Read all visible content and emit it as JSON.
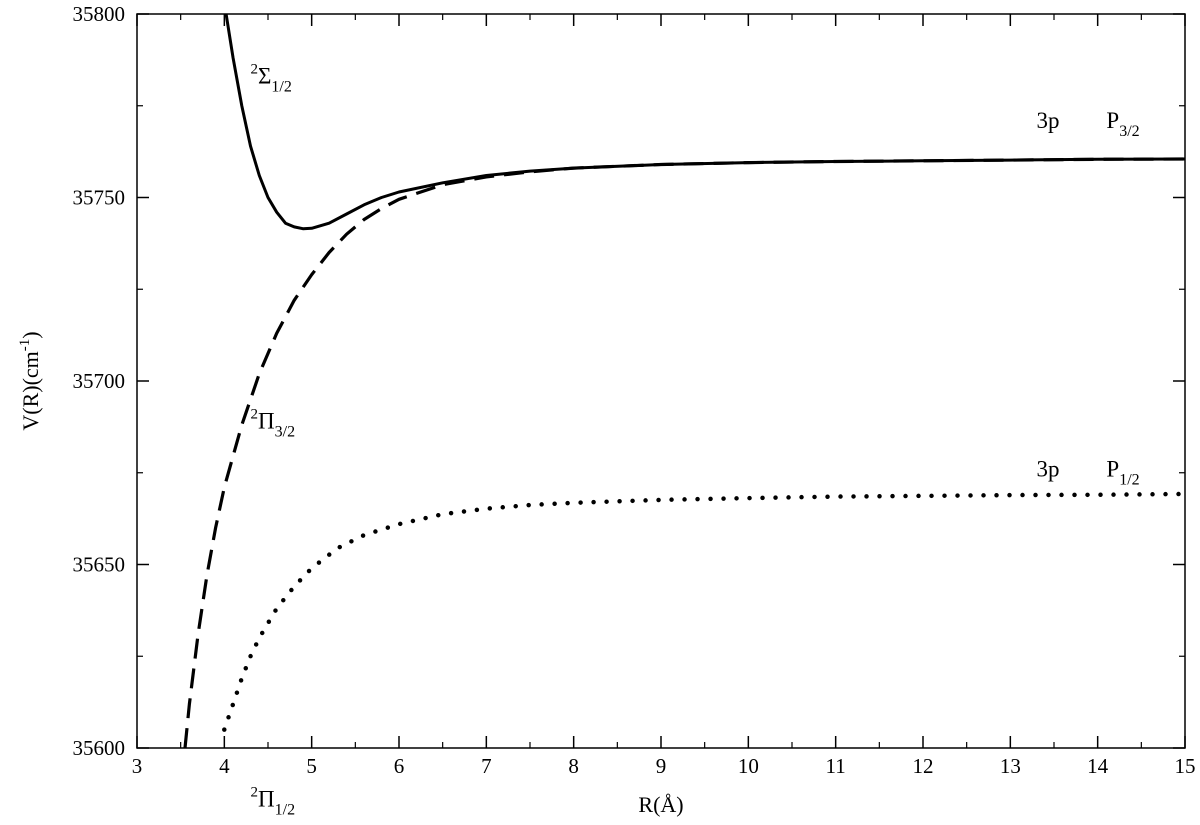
{
  "chart_data": {
    "type": "line",
    "xlabel": "R(Å)",
    "ylabel": {
      "main": "V(R)(cm",
      "sup": "-1",
      "close": ")"
    },
    "xlim": [
      3,
      15
    ],
    "ylim": [
      35600,
      35800
    ],
    "x_ticks": [
      3,
      4,
      5,
      6,
      7,
      8,
      9,
      10,
      11,
      12,
      13,
      14,
      15
    ],
    "y_ticks": [
      35600,
      35650,
      35700,
      35750,
      35800
    ],
    "grid": false,
    "series": [
      {
        "style": "solid",
        "x": [
          4.02,
          4.1,
          4.2,
          4.3,
          4.4,
          4.5,
          4.6,
          4.7,
          4.8,
          4.9,
          5.0,
          5.2,
          5.4,
          5.6,
          5.8,
          6.0,
          6.5,
          7.0,
          7.5,
          8.0,
          9.0,
          10.0,
          11.0,
          12.0,
          13.0,
          14.0,
          15.0
        ],
        "y": [
          35800,
          35788,
          35775,
          35764,
          35756,
          35750,
          35746,
          35743,
          35742,
          35741.5,
          35741.6,
          35743,
          35745.5,
          35748,
          35750,
          35751.5,
          35754,
          35756,
          35757.2,
          35758,
          35759,
          35759.5,
          35759.8,
          35760,
          35760.2,
          35760.4,
          35760.5
        ]
      },
      {
        "style": "dashed",
        "x": [
          3.55,
          3.6,
          3.7,
          3.8,
          3.9,
          4.0,
          4.2,
          4.4,
          4.6,
          4.8,
          5.0,
          5.2,
          5.4,
          5.6,
          5.8,
          6.0,
          6.5,
          7.0,
          7.5,
          8.0,
          9.0,
          10.0,
          11.0,
          12.0,
          13.0,
          14.0,
          15.0
        ],
        "y": [
          35600,
          35612,
          35631,
          35647,
          35660,
          35671,
          35688,
          35702,
          35713,
          35722,
          35729,
          35735,
          35740,
          35744,
          35747,
          35749.5,
          35753.5,
          35755.6,
          35757,
          35758,
          35759,
          35759.5,
          35759.8,
          35760,
          35760.2,
          35760.4,
          35760.5
        ]
      },
      {
        "style": "dotted",
        "x": [
          4.0,
          4.1,
          4.2,
          4.3,
          4.4,
          4.6,
          4.8,
          5.0,
          5.3,
          5.6,
          6.0,
          6.5,
          7.0,
          7.5,
          8.0,
          9.0,
          10.0,
          11.0,
          12.0,
          13.0,
          14.0,
          15.0
        ],
        "y": [
          35605,
          35612,
          35619,
          35625,
          35630,
          35638,
          35644,
          35649,
          35654.5,
          35658,
          35661,
          35663.7,
          35665.2,
          35666.2,
          35666.8,
          35667.6,
          35668.1,
          35668.5,
          35668.7,
          35668.9,
          35669,
          35669.2
        ]
      }
    ],
    "annotations": [
      {
        "sup": "2",
        "main": "Σ",
        "sub": "1/2",
        "x": 4.3,
        "y": 35781
      },
      {
        "sup": "2",
        "main": "Π",
        "sub": "3/2",
        "x": 4.3,
        "y": 35687
      },
      {
        "sup": "2",
        "main": "Π",
        "sub": "1/2",
        "x": 4.3,
        "y": 35584
      },
      {
        "sup": "",
        "main": "3p",
        "sub": "",
        "x": 13.3,
        "y": 35769
      },
      {
        "sup": "",
        "main": "P",
        "sub": "3/2",
        "x": 14.1,
        "y": 35769
      },
      {
        "sup": "",
        "main": "3p",
        "sub": "",
        "x": 13.3,
        "y": 35674
      },
      {
        "sup": "",
        "main": "P",
        "sub": "1/2",
        "x": 14.1,
        "y": 35674
      }
    ]
  }
}
